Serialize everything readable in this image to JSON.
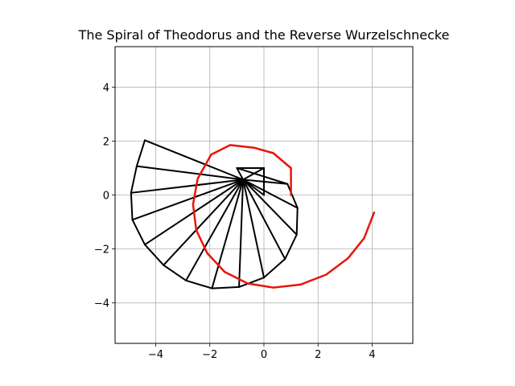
{
  "chart_data": {
    "type": "line",
    "title": "The Spiral of Theodorus and the Reverse Wurzelschnecke",
    "xlabel": "",
    "ylabel": "",
    "xlim": [
      -5.5,
      5.5
    ],
    "ylim": [
      -5.5,
      5.5
    ],
    "grid": true,
    "equal_aspect": true,
    "x_ticks": [
      -4,
      -2,
      0,
      2,
      4
    ],
    "y_ticks": [
      -4,
      -2,
      0,
      2,
      4
    ],
    "x_tick_labels": [
      "−4",
      "−2",
      "0",
      "2",
      "4"
    ],
    "y_tick_labels": [
      "−4",
      "−2",
      "0",
      "2",
      "4"
    ],
    "series": [
      {
        "color": "#000000",
        "style": "Theodorus triangles: spokes from hub to each vertex plus outer edges",
        "hub": [
          -0.77,
          0.57
        ],
        "vertices": [
          [
            0.0,
            0.0
          ],
          [
            0.0,
            1.0
          ],
          [
            -1.0,
            1.0
          ],
          [
            0.87,
            0.41
          ],
          [
            1.24,
            -0.48
          ],
          [
            1.21,
            -1.47
          ],
          [
            0.78,
            -2.37
          ],
          [
            0.0,
            -3.06
          ],
          [
            -0.92,
            -3.41
          ],
          [
            -1.92,
            -3.46
          ],
          [
            -2.88,
            -3.17
          ],
          [
            -3.71,
            -2.6
          ],
          [
            -4.4,
            -1.84
          ],
          [
            -4.86,
            -0.92
          ],
          [
            -4.91,
            0.08
          ],
          [
            -4.7,
            1.07
          ],
          [
            -4.4,
            2.03
          ]
        ]
      },
      {
        "color": "#e8150b",
        "style": "reverse wurzelschnecke curve",
        "points": [
          [
            4.07,
            -0.65
          ],
          [
            3.7,
            -1.6
          ],
          [
            3.1,
            -2.35
          ],
          [
            2.3,
            -2.95
          ],
          [
            1.35,
            -3.32
          ],
          [
            0.35,
            -3.43
          ],
          [
            -0.6,
            -3.28
          ],
          [
            -1.45,
            -2.85
          ],
          [
            -2.1,
            -2.15
          ],
          [
            -2.5,
            -1.3
          ],
          [
            -2.62,
            -0.35
          ],
          [
            -2.45,
            0.6
          ],
          [
            -1.95,
            1.5
          ],
          [
            -1.25,
            1.85
          ],
          [
            -0.35,
            1.75
          ],
          [
            0.35,
            1.55
          ],
          [
            1.0,
            1.0
          ],
          [
            1.0,
            0.0
          ]
        ]
      }
    ]
  }
}
